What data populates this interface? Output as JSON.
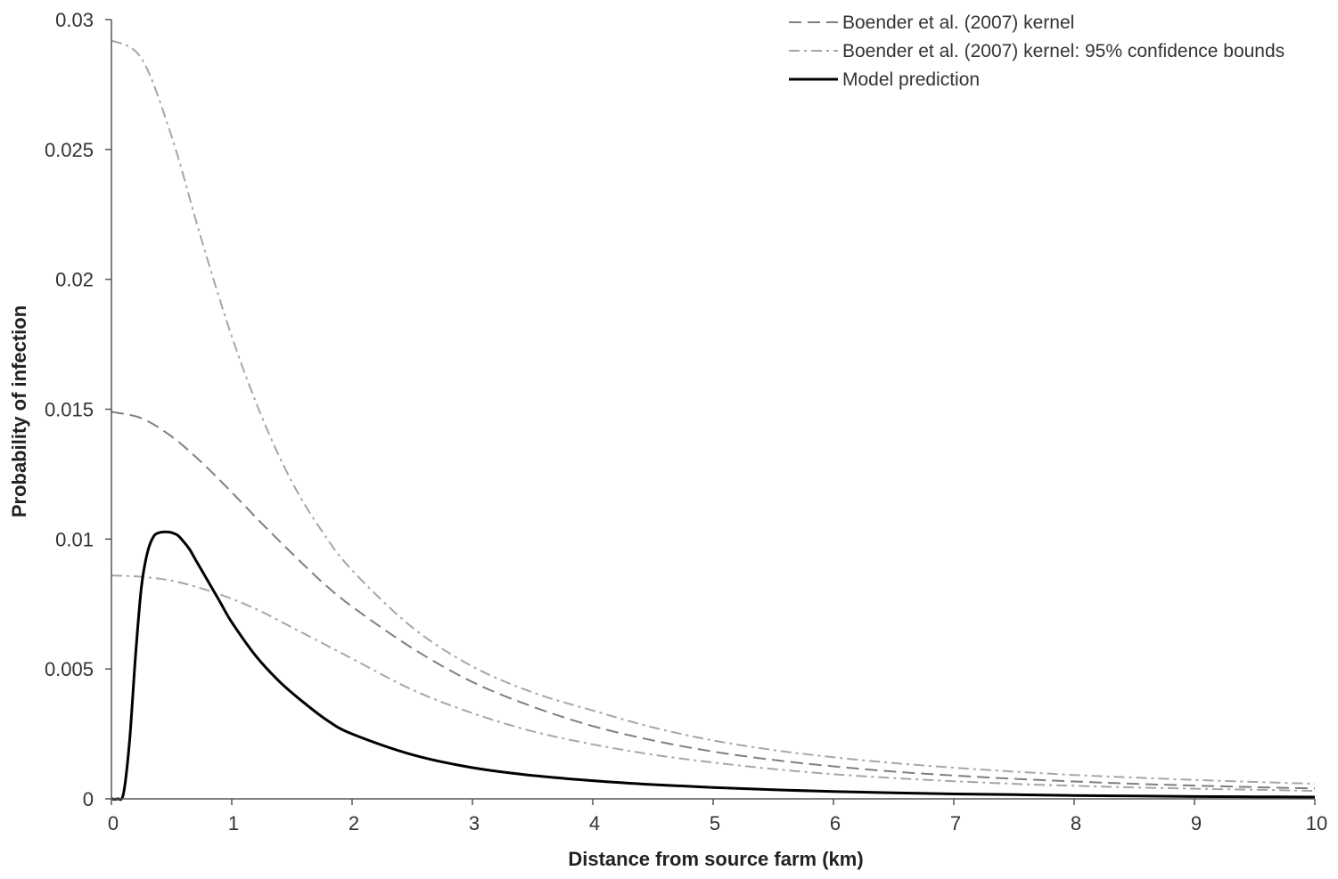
{
  "chart_data": {
    "type": "line",
    "xlabel": "Distance from source farm (km)",
    "ylabel": "Probability of infection",
    "xlim": [
      0,
      10
    ],
    "ylim": [
      0,
      0.03
    ],
    "x_ticks": [
      "0",
      "1",
      "2",
      "3",
      "4",
      "5",
      "6",
      "7",
      "8",
      "9",
      "10"
    ],
    "y_ticks": [
      "0",
      "0.005",
      "0.01",
      "0.015",
      "0.02",
      "0.025",
      "0.03"
    ],
    "grid": false,
    "legend_position": "top-right",
    "series": [
      {
        "name": "Boender et al. (2007) kernel",
        "style": "dashed",
        "color": "#7f7f7f",
        "x": [
          0,
          0.25,
          0.5,
          0.75,
          1,
          1.25,
          1.5,
          1.75,
          2,
          2.5,
          3,
          3.5,
          4,
          4.5,
          5,
          5.5,
          6,
          6.5,
          7,
          7.5,
          8,
          8.5,
          9,
          9.5,
          10
        ],
        "y": [
          0.0149,
          0.01465,
          0.01395,
          0.01295,
          0.0118,
          0.0106,
          0.00945,
          0.00835,
          0.0074,
          0.0058,
          0.0045,
          0.00355,
          0.0028,
          0.00225,
          0.00182,
          0.0015,
          0.00125,
          0.00105,
          0.0009,
          0.00077,
          0.00067,
          0.00058,
          0.00051,
          0.00045,
          0.0004
        ]
      },
      {
        "name": "Boender et al. (2007) kernel: 95% confidence bounds",
        "style": "dash-dot",
        "color": "#a6a6a6",
        "x": [
          0,
          0.25,
          0.5,
          0.75,
          1,
          1.25,
          1.5,
          1.75,
          2,
          2.5,
          3,
          3.5,
          4,
          4.5,
          5,
          5.5,
          6,
          6.5,
          7,
          7.5,
          8,
          8.5,
          9,
          9.5,
          10
        ],
        "y": [
          0.0292,
          0.0285,
          0.0255,
          0.0215,
          0.0178,
          0.0147,
          0.0122,
          0.0103,
          0.0088,
          0.0066,
          0.0051,
          0.0041,
          0.0034,
          0.00275,
          0.00225,
          0.00188,
          0.0016,
          0.00138,
          0.0012,
          0.00105,
          0.00092,
          0.00082,
          0.00073,
          0.00065,
          0.00058
        ]
      },
      {
        "name": "",
        "style": "dash-dot",
        "color": "#a6a6a6",
        "x": [
          0,
          0.25,
          0.5,
          0.75,
          1,
          1.25,
          1.5,
          1.75,
          2,
          2.5,
          3,
          3.5,
          4,
          4.5,
          5,
          5.5,
          6,
          6.5,
          7,
          7.5,
          8,
          8.5,
          9,
          9.5,
          10
        ],
        "y": [
          0.0086,
          0.00855,
          0.0084,
          0.0081,
          0.0077,
          0.0072,
          0.0066,
          0.006,
          0.0054,
          0.0042,
          0.0033,
          0.0026,
          0.0021,
          0.0017,
          0.0014,
          0.00115,
          0.00095,
          0.0008,
          0.00068,
          0.00058,
          0.0005,
          0.00044,
          0.00039,
          0.00035,
          0.00031
        ]
      },
      {
        "name": "Model prediction",
        "style": "solid",
        "color": "#000000",
        "x": [
          0,
          0.05,
          0.1,
          0.15,
          0.2,
          0.25,
          0.3,
          0.35,
          0.4,
          0.45,
          0.5,
          0.55,
          0.6,
          0.65,
          0.7,
          0.8,
          0.9,
          1,
          1.2,
          1.4,
          1.6,
          1.8,
          2,
          2.5,
          3,
          3.5,
          4,
          4.5,
          5,
          5.5,
          6,
          6.5,
          7,
          7.5,
          8,
          8.5,
          9,
          9.5,
          10
        ],
        "y": [
          0,
          0,
          0.0002,
          0.0022,
          0.0055,
          0.0082,
          0.0095,
          0.0101,
          0.01025,
          0.01028,
          0.01025,
          0.01015,
          0.0099,
          0.0096,
          0.0092,
          0.0084,
          0.0076,
          0.0068,
          0.0055,
          0.0045,
          0.0037,
          0.003,
          0.0025,
          0.0017,
          0.0012,
          0.0009,
          0.0007,
          0.00055,
          0.00044,
          0.00035,
          0.00028,
          0.00023,
          0.00019,
          0.00016,
          0.00013,
          0.00011,
          9e-05,
          8e-05,
          7e-05
        ]
      }
    ]
  }
}
